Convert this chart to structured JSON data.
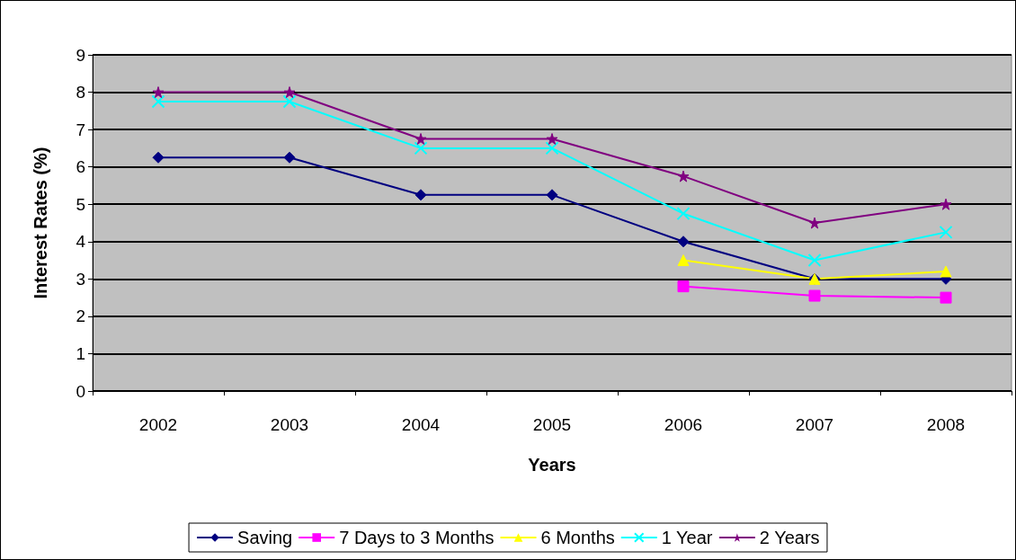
{
  "chart_data": {
    "type": "line",
    "xlabel": "Years",
    "ylabel": "Interest Rates (%)",
    "categories": [
      "2002",
      "2003",
      "2004",
      "2005",
      "2006",
      "2007",
      "2008"
    ],
    "series": [
      {
        "name": "Saving",
        "color": "#000080",
        "marker": "diamond",
        "values": [
          6.25,
          6.25,
          5.25,
          5.25,
          4,
          3,
          3
        ]
      },
      {
        "name": "7 Days to 3 Months",
        "color": "#ff00ff",
        "marker": "square",
        "values": [
          null,
          null,
          null,
          null,
          2.8,
          2.55,
          2.5
        ]
      },
      {
        "name": "6 Months",
        "color": "#ffff00",
        "marker": "triangle",
        "values": [
          null,
          null,
          null,
          null,
          3.5,
          3,
          3.2
        ]
      },
      {
        "name": "1 Year",
        "color": "#00ffff",
        "marker": "cross",
        "values": [
          7.75,
          7.75,
          6.5,
          6.5,
          4.75,
          3.5,
          4.25
        ]
      },
      {
        "name": "2 Years",
        "color": "#800080",
        "marker": "star",
        "values": [
          8,
          8,
          6.75,
          6.75,
          5.75,
          4.5,
          5
        ]
      }
    ],
    "ylim": [
      0,
      9
    ],
    "yticks": [
      0,
      1,
      2,
      3,
      4,
      5,
      6,
      7,
      8,
      9
    ],
    "grid": "y",
    "legend": "bottom"
  }
}
